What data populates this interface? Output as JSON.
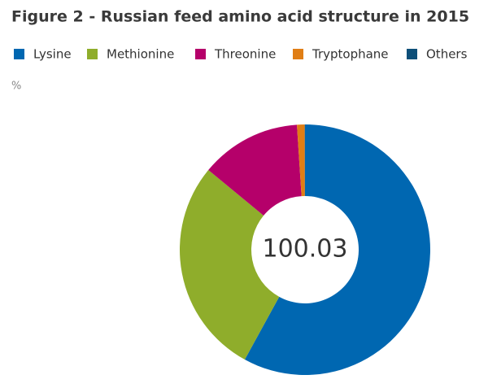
{
  "chart_data": {
    "type": "donut",
    "title": "Figure 2 - Russian feed amino acid structure in 2015",
    "unit": "%",
    "center_label": "100.03",
    "series": [
      {
        "name": "Lysine",
        "color": "#0067b1",
        "value": 58
      },
      {
        "name": "Methionine",
        "color": "#8fad2b",
        "value": 28
      },
      {
        "name": "Threonine",
        "color": "#b5006a",
        "value": 13
      },
      {
        "name": "Tryptophane",
        "color": "#e07e15",
        "value": 1
      },
      {
        "name": "Others",
        "color": "#0d4f79",
        "value": 0.03
      }
    ]
  }
}
